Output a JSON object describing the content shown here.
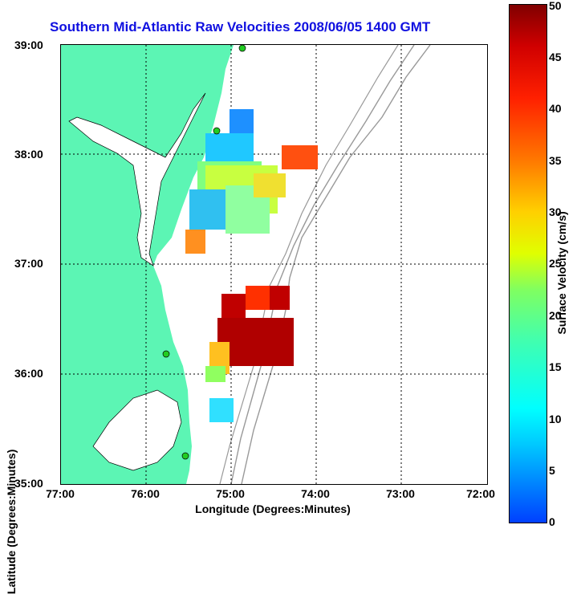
{
  "title": "Southern Mid-Atlantic Raw Velocities 2008/06/05 1400 GMT",
  "xlabel": "Longitude (Degrees:Minutes)",
  "ylabel": "Latitude (Degrees:Minutes)",
  "xticks": [
    "77:00",
    "76:00",
    "75:00",
    "74:00",
    "73:00",
    "72:00"
  ],
  "yticks": [
    "39:00",
    "38:00",
    "37:00",
    "36:00",
    "35:00"
  ],
  "colorbar": {
    "label": "Surface Velocity (cm/s)",
    "ticks": [
      "50",
      "45",
      "40",
      "35",
      "30",
      "25",
      "20",
      "15",
      "10",
      "5",
      "0"
    ]
  },
  "colors": {
    "land": "#5cf5b4",
    "title": "#1010e0",
    "bathymetry": "#999999",
    "station": "#22cc22"
  }
}
